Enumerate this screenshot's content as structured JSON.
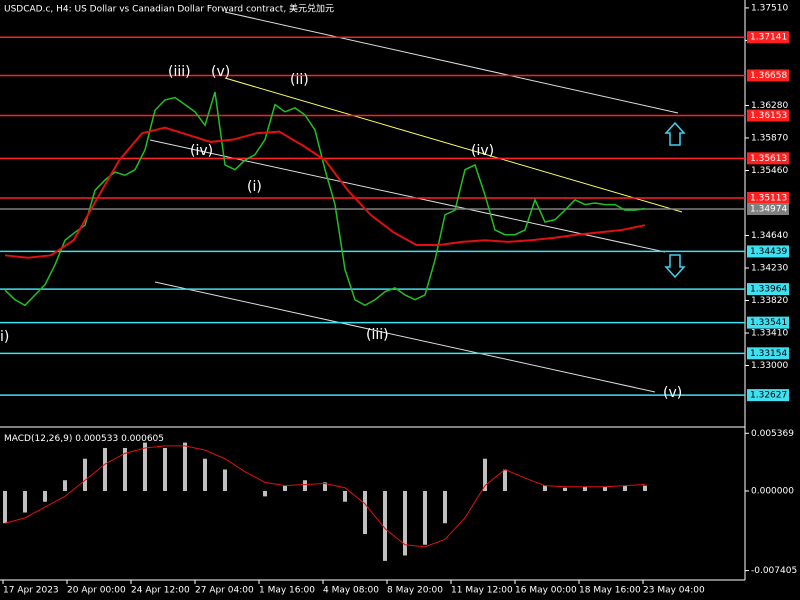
{
  "chart_data": [
    {
      "type": "line",
      "title": "USDCAD.c, H4:  US Dollar vs Canadian Dollar Forward contract, 美元兑加元",
      "ylim": [
        1.3225,
        1.3761
      ],
      "yticks": [
        {
          "value": 1.3751,
          "label": "1.37510"
        },
        {
          "value": 1.371,
          "label": "1.37100"
        },
        {
          "value": 1.3628,
          "label": "1.36280"
        },
        {
          "value": 1.3587,
          "label": "1.35870"
        },
        {
          "value": 1.3546,
          "label": "1.35460"
        },
        {
          "value": 1.3464,
          "label": "1.34640"
        },
        {
          "value": 1.3423,
          "label": "1.34230"
        },
        {
          "value": 1.3382,
          "label": "1.33820"
        },
        {
          "value": 1.3341,
          "label": "1.33410"
        },
        {
          "value": 1.33,
          "label": "1.33000"
        }
      ],
      "levels": [
        {
          "value": 1.37141,
          "color": "#ff2020"
        },
        {
          "value": 1.36658,
          "color": "#ff2020"
        },
        {
          "value": 1.36153,
          "color": "#ff2020"
        },
        {
          "value": 1.35613,
          "color": "#ff2020"
        },
        {
          "value": 1.35113,
          "color": "#ff2020"
        },
        {
          "value": 1.34974,
          "color": "#808080"
        },
        {
          "value": 1.34439,
          "color": "#40e0f0"
        },
        {
          "value": 1.33964,
          "color": "#40e0f0"
        },
        {
          "value": 1.33541,
          "color": "#40e0f0"
        },
        {
          "value": 1.33154,
          "color": "#40e0f0"
        },
        {
          "value": 1.32627,
          "color": "#40e0f0"
        }
      ],
      "series": [
        {
          "color": "#22c022",
          "values": [
            1.3395,
            1.3383,
            1.3376,
            1.3389,
            1.3402,
            1.3427,
            1.3458,
            1.3468,
            1.3477,
            1.3521,
            1.3534,
            1.3544,
            1.354,
            1.3547,
            1.3572,
            1.3622,
            1.3635,
            1.3638,
            1.3629,
            1.362,
            1.3603,
            1.3645,
            1.3553,
            1.3547,
            1.3559,
            1.3566,
            1.3585,
            1.3629,
            1.362,
            1.3625,
            1.3616,
            1.3597,
            1.3547,
            1.3503,
            1.3421,
            1.3383,
            1.3376,
            1.3383,
            1.3393,
            1.3398,
            1.3389,
            1.3383,
            1.3389,
            1.3433,
            1.349,
            1.3496,
            1.3547,
            1.3553,
            1.3515,
            1.3471,
            1.3465,
            1.3465,
            1.3471,
            1.3509,
            1.3481,
            1.3484,
            1.3496,
            1.3509,
            1.3503,
            1.3505,
            1.3503,
            1.3503,
            1.3496,
            1.3496,
            1.3498
          ]
        },
        {
          "color": "#e01010",
          "values": [
            1.3439,
            1.3436,
            1.3439,
            1.3458,
            1.3509,
            1.3559,
            1.3593,
            1.36,
            1.3591,
            1.3582,
            1.3585,
            1.3593,
            1.3595,
            1.3578,
            1.3559,
            1.3521,
            1.349,
            1.3468,
            1.3452,
            1.3452,
            1.3456,
            1.3458,
            1.3456,
            1.3458,
            1.3461,
            1.3465,
            1.3468,
            1.3471,
            1.3477
          ]
        }
      ],
      "annotations": [
        "(iii)",
        "(v)",
        "(ii)",
        "(iv)",
        "(i)",
        "(iv)",
        "(iii)",
        "(v)",
        "i)"
      ],
      "date_labels": [
        "17 Apr 2023",
        "20 Apr 00:00",
        "24 Apr 12:00",
        "27 Apr 04:00",
        "1 May 16:00",
        "4 May 08:00",
        "8 May 20:00",
        "11 May 12:00",
        "16 May 00:00",
        "18 May 16:00",
        "23 May 04:00"
      ]
    },
    {
      "type": "bar",
      "title": "MACD(12,26,9)",
      "macd_value": 0.000533,
      "signal_value": 0.000605,
      "ylim": [
        -0.00828,
        0.00586
      ],
      "yticks": [
        0.005369,
        {
          "value": 0,
          "label": "0.000000"
        },
        -0.007405
      ],
      "series": [
        {
          "color": "#c0c0c0",
          "values": [
            -0.003,
            -0.002,
            -0.001,
            0.001,
            0.003,
            0.004,
            0.004,
            0.0045,
            0.004,
            0.0045,
            0.003,
            0.002,
            0,
            -0.0005,
            0.0005,
            0.001,
            0.0008,
            -0.001,
            -0.004,
            -0.0065,
            -0.006,
            -0.005,
            -0.003,
            0,
            0.003,
            0.002,
            0,
            0.0005,
            0.0003,
            0.0004,
            0.0004,
            0.0005,
            0.0005
          ]
        },
        {
          "color": "#e01010",
          "values": [
            -0.003,
            -0.0025,
            -0.0015,
            -0.0005,
            0.001,
            0.0025,
            0.0035,
            0.004,
            0.0042,
            0.0042,
            0.0038,
            0.003,
            0.0018,
            0.0008,
            0.0005,
            0.0006,
            0.0007,
            0.0003,
            -0.0012,
            -0.0035,
            -0.005,
            -0.0052,
            -0.0045,
            -0.0025,
            0.0005,
            0.002,
            0.0012,
            0.0005,
            0.0004,
            0.0004,
            0.0004,
            0.0005,
            0.0006
          ]
        }
      ]
    }
  ]
}
